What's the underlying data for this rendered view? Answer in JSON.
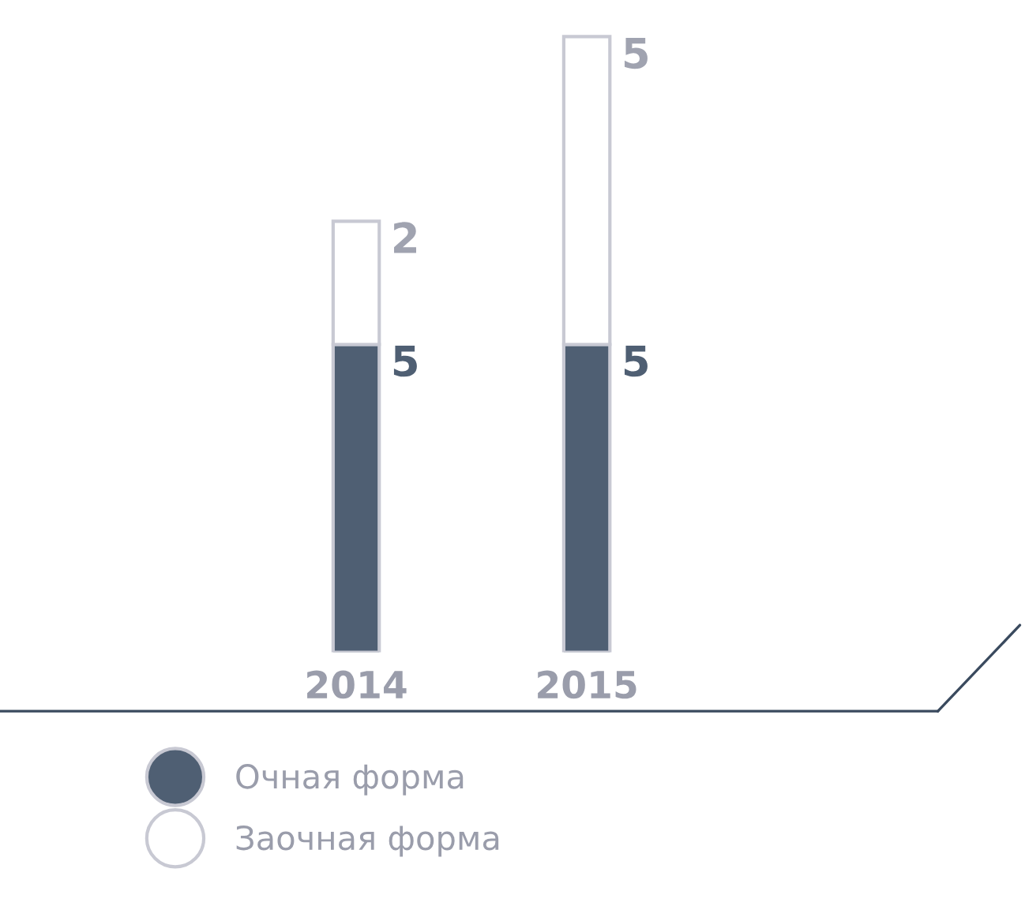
{
  "chart_data": {
    "type": "bar",
    "stacked": true,
    "data_labels": true,
    "legend": "bottom left",
    "grid": false,
    "categories": [
      "2014",
      "2015"
    ],
    "series": [
      {
        "name": "Очная форма",
        "color": "#4f5f73",
        "values": [
          5,
          5
        ]
      },
      {
        "name": "Заочная форма",
        "color": "#ffffff",
        "values": [
          2,
          5
        ]
      }
    ]
  }
}
